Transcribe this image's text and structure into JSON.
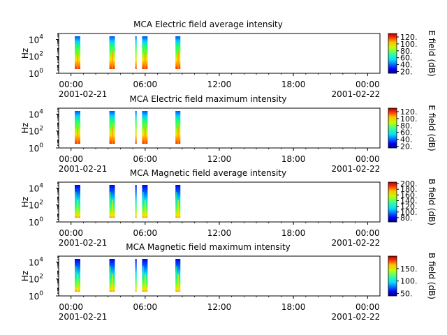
{
  "chart_data": [
    {
      "type": "heatmap",
      "title": "MCA  Electric field average intensity",
      "ylabel": "Hz",
      "yscale": "log",
      "y_ticks": [
        {
          "base": "10",
          "exp": "0"
        },
        {
          "base": "10",
          "exp": "2"
        },
        {
          "base": "10",
          "exp": "4"
        }
      ],
      "x_tick_labels": [
        "00:00",
        "06:00",
        "12:00",
        "18:00",
        "00:00"
      ],
      "x_tick_hours": [
        0,
        6,
        12,
        18,
        24
      ],
      "date_labels": [
        "2001-02-21",
        "2001-02-22"
      ],
      "x_range_hours": [
        -1,
        25
      ],
      "y_range": [
        1,
        50000
      ],
      "colorbar": {
        "label": "E field (dB)",
        "ticks": [
          "120.",
          "100.",
          "80.",
          "60.",
          "40.",
          "20."
        ],
        "range": [
          15,
          130
        ]
      },
      "bursts_hours": [
        [
          0.3,
          0.75
        ],
        [
          3.1,
          3.55
        ],
        [
          5.2,
          5.3
        ],
        [
          5.75,
          6.2
        ],
        [
          8.45,
          8.85
        ]
      ],
      "intensity_scale": "electric"
    },
    {
      "type": "heatmap",
      "title": "MCA  Electric field maximum intensity",
      "ylabel": "Hz",
      "yscale": "log",
      "y_ticks": [
        {
          "base": "10",
          "exp": "0"
        },
        {
          "base": "10",
          "exp": "2"
        },
        {
          "base": "10",
          "exp": "4"
        }
      ],
      "x_tick_labels": [
        "00:00",
        "06:00",
        "12:00",
        "18:00",
        "00:00"
      ],
      "x_tick_hours": [
        0,
        6,
        12,
        18,
        24
      ],
      "date_labels": [
        "2001-02-21",
        "2001-02-22"
      ],
      "x_range_hours": [
        -1,
        25
      ],
      "y_range": [
        1,
        50000
      ],
      "colorbar": {
        "label": "E field (dB)",
        "ticks": [
          "120.",
          "100.",
          "80.",
          "60.",
          "40.",
          "20."
        ],
        "range": [
          15,
          130
        ]
      },
      "bursts_hours": [
        [
          0.3,
          0.75
        ],
        [
          3.1,
          3.55
        ],
        [
          5.2,
          5.3
        ],
        [
          5.75,
          6.2
        ],
        [
          8.45,
          8.85
        ]
      ],
      "intensity_scale": "electric"
    },
    {
      "type": "heatmap",
      "title": "MCA  Magnetic field average intensity",
      "ylabel": "Hz",
      "yscale": "log",
      "y_ticks": [
        {
          "base": "10",
          "exp": "0"
        },
        {
          "base": "10",
          "exp": "2"
        },
        {
          "base": "10",
          "exp": "4"
        }
      ],
      "x_tick_labels": [
        "00:00",
        "06:00",
        "12:00",
        "18:00",
        "00:00"
      ],
      "x_tick_hours": [
        0,
        6,
        12,
        18,
        24
      ],
      "date_labels": [
        "2001-02-21",
        "2001-02-22"
      ],
      "x_range_hours": [
        -1,
        25
      ],
      "y_range": [
        1,
        50000
      ],
      "colorbar": {
        "label": "B field (dB)",
        "ticks": [
          "200.",
          "180.",
          "160.",
          "140.",
          "120.",
          "100.",
          "80."
        ],
        "range": [
          65,
          205
        ]
      },
      "bursts_hours": [
        [
          0.3,
          0.75
        ],
        [
          3.1,
          3.55
        ],
        [
          5.2,
          5.3
        ],
        [
          5.75,
          6.2
        ],
        [
          8.45,
          8.85
        ]
      ],
      "intensity_scale": "magnetic"
    },
    {
      "type": "heatmap",
      "title": "MCA  Magnetic field maximum intensity",
      "ylabel": "Hz",
      "yscale": "log",
      "y_ticks": [
        {
          "base": "10",
          "exp": "0"
        },
        {
          "base": "10",
          "exp": "2"
        },
        {
          "base": "10",
          "exp": "4"
        }
      ],
      "x_tick_labels": [
        "00:00",
        "06:00",
        "12:00",
        "18:00",
        "00:00"
      ],
      "x_tick_hours": [
        0,
        6,
        12,
        18,
        24
      ],
      "date_labels": [
        "2001-02-21",
        "2001-02-22"
      ],
      "x_range_hours": [
        -1,
        25
      ],
      "y_range": [
        1,
        50000
      ],
      "colorbar": {
        "label": "B field (dB)",
        "ticks": [
          "150.",
          "100.",
          "50."
        ],
        "range": [
          40,
          200
        ]
      },
      "bursts_hours": [
        [
          0.3,
          0.75
        ],
        [
          3.1,
          3.55
        ],
        [
          5.2,
          5.3
        ],
        [
          5.75,
          6.2
        ],
        [
          8.45,
          8.85
        ]
      ],
      "intensity_scale": "magnetic"
    }
  ]
}
